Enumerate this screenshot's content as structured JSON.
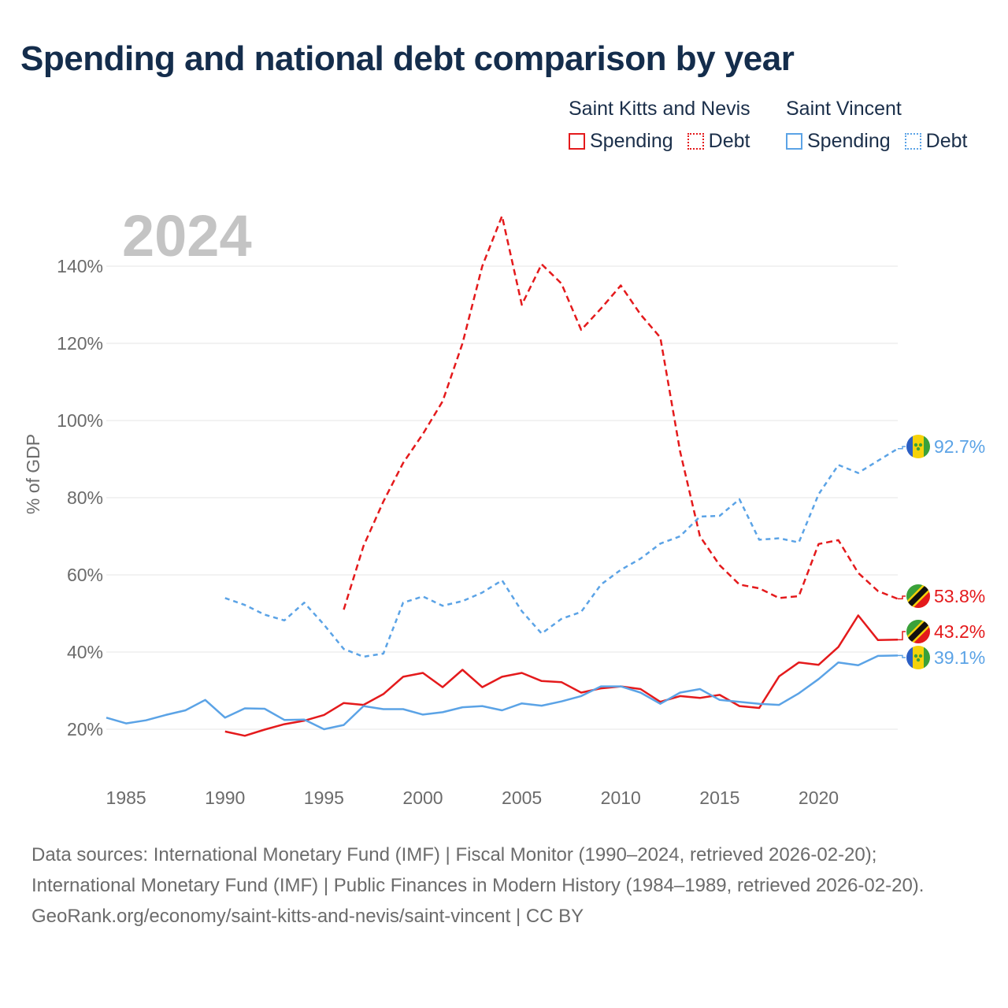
{
  "title": "Spending and national debt comparison by year",
  "legend": {
    "groups": [
      {
        "name": "Saint Kitts and Nevis",
        "items": [
          "Spending",
          "Debt"
        ]
      },
      {
        "name": "Saint Vincent",
        "items": [
          "Spending",
          "Debt"
        ]
      }
    ]
  },
  "colors": {
    "saint_kitts": "#e41a1c",
    "saint_vincent": "#5ba3e6",
    "grid": "#e6e6e6",
    "axis_text": "#6b6b6b",
    "year_watermark": "#c4c4c4"
  },
  "icons": {
    "saint_kitts_flag": "saint-kitts-flag-icon",
    "saint_vincent_flag": "saint-vincent-flag-icon"
  },
  "chart_data": {
    "type": "line",
    "year_label": "2024",
    "ylabel": "% of GDP",
    "xlabel": "",
    "xlim": [
      1984,
      2024
    ],
    "ylim": [
      10,
      160
    ],
    "x_ticks": [
      1985,
      1990,
      1995,
      2000,
      2005,
      2010,
      2015,
      2020
    ],
    "x_tick_labels": [
      "1985",
      "1990",
      "1995",
      "2000",
      "2005",
      "2010",
      "2015",
      "2020"
    ],
    "y_ticks": [
      20,
      40,
      60,
      80,
      100,
      120,
      140
    ],
    "y_tick_labels": [
      "20%",
      "40%",
      "60%",
      "80%",
      "100%",
      "120%",
      "140%"
    ],
    "grid": true,
    "series": [
      {
        "name": "Saint Kitts and Nevis Spending",
        "country": "Saint Kitts and Nevis",
        "metric": "Spending",
        "style": "solid",
        "color": "#e41a1c",
        "x": [
          1990,
          1991,
          1992,
          1993,
          1994,
          1995,
          1996,
          1997,
          1998,
          1999,
          2000,
          2001,
          2002,
          2003,
          2004,
          2005,
          2006,
          2007,
          2008,
          2009,
          2010,
          2011,
          2012,
          2013,
          2014,
          2015,
          2016,
          2017,
          2018,
          2019,
          2020,
          2021,
          2022,
          2023,
          2024
        ],
        "values": [
          19.4,
          18.3,
          19.9,
          21.3,
          22.2,
          23.7,
          26.8,
          26.3,
          29.1,
          33.6,
          34.6,
          30.9,
          35.4,
          30.9,
          33.6,
          34.6,
          32.5,
          32.2,
          29.5,
          30.6,
          31.1,
          30.4,
          27.1,
          28.6,
          28.1,
          28.9,
          26.0,
          25.5,
          33.7,
          37.3,
          36.7,
          41.3,
          49.5,
          43.1,
          43.2
        ],
        "end_label": "43.2%"
      },
      {
        "name": "Saint Kitts and Nevis Debt",
        "country": "Saint Kitts and Nevis",
        "metric": "Debt",
        "style": "dashed",
        "color": "#e41a1c",
        "x": [
          1996,
          1997,
          1998,
          1999,
          2000,
          2001,
          2002,
          2003,
          2004,
          2005,
          2006,
          2007,
          2008,
          2009,
          2010,
          2011,
          2012,
          2013,
          2014,
          2015,
          2016,
          2017,
          2018,
          2019,
          2020,
          2021,
          2022,
          2023,
          2024
        ],
        "values": [
          51.0,
          67.5,
          79.0,
          89.0,
          96.5,
          105.0,
          120.0,
          140.0,
          153.0,
          130.0,
          140.5,
          135.5,
          123.5,
          129.0,
          135.0,
          127.5,
          121.5,
          92.0,
          70.0,
          62.5,
          57.5,
          56.5,
          54.0,
          54.5,
          68.0,
          69.0,
          60.5,
          55.8,
          53.8
        ],
        "end_label": "53.8%"
      },
      {
        "name": "Saint Vincent Spending",
        "country": "Saint Vincent",
        "metric": "Spending",
        "style": "solid",
        "color": "#5ba3e6",
        "x": [
          1984,
          1985,
          1986,
          1987,
          1988,
          1989,
          1990,
          1991,
          1992,
          1993,
          1994,
          1995,
          1996,
          1997,
          1998,
          1999,
          2000,
          2001,
          2002,
          2003,
          2004,
          2005,
          2006,
          2007,
          2008,
          2009,
          2010,
          2011,
          2012,
          2013,
          2014,
          2015,
          2016,
          2017,
          2018,
          2019,
          2020,
          2021,
          2022,
          2023,
          2024
        ],
        "values": [
          23.0,
          21.5,
          22.3,
          23.7,
          24.9,
          27.6,
          23.0,
          25.4,
          25.3,
          22.4,
          22.5,
          20.0,
          21.1,
          26.0,
          25.2,
          25.2,
          23.8,
          24.4,
          25.7,
          26.0,
          24.9,
          26.7,
          26.1,
          27.2,
          28.6,
          31.1,
          31.1,
          29.5,
          26.6,
          29.5,
          30.4,
          27.6,
          27.1,
          26.6,
          26.3,
          29.3,
          33.0,
          37.3,
          36.6,
          39.0,
          39.1
        ],
        "end_label": "39.1%"
      },
      {
        "name": "Saint Vincent Debt",
        "country": "Saint Vincent",
        "metric": "Debt",
        "style": "dotted",
        "color": "#5ba3e6",
        "x": [
          1990,
          1991,
          1992,
          1993,
          1994,
          1995,
          1996,
          1997,
          1998,
          1999,
          2000,
          2001,
          2002,
          2003,
          2004,
          2005,
          2006,
          2007,
          2008,
          2009,
          2010,
          2011,
          2012,
          2013,
          2014,
          2015,
          2016,
          2017,
          2018,
          2019,
          2020,
          2021,
          2022,
          2023,
          2024
        ],
        "values": [
          54.0,
          52.2,
          49.7,
          48.2,
          52.8,
          47.1,
          40.8,
          38.8,
          39.6,
          52.8,
          54.4,
          52.0,
          53.2,
          55.4,
          58.6,
          50.6,
          44.8,
          48.6,
          50.4,
          57.5,
          61.3,
          64.2,
          68.1,
          70.0,
          75.1,
          75.3,
          79.6,
          69.1,
          69.5,
          68.4,
          80.9,
          88.5,
          86.4,
          89.6,
          92.7
        ],
        "end_label": "92.7%"
      }
    ]
  },
  "sources": {
    "line1": "Data sources: International Monetary Fund (IMF) | Fiscal Monitor (1990–2024, retrieved 2026-02-20); International Monetary Fund (IMF) | Public Finances in Modern History (1984–1989, retrieved 2026-02-20).",
    "line2": "GeoRank.org/economy/saint-kitts-and-nevis/saint-vincent | CC BY"
  }
}
